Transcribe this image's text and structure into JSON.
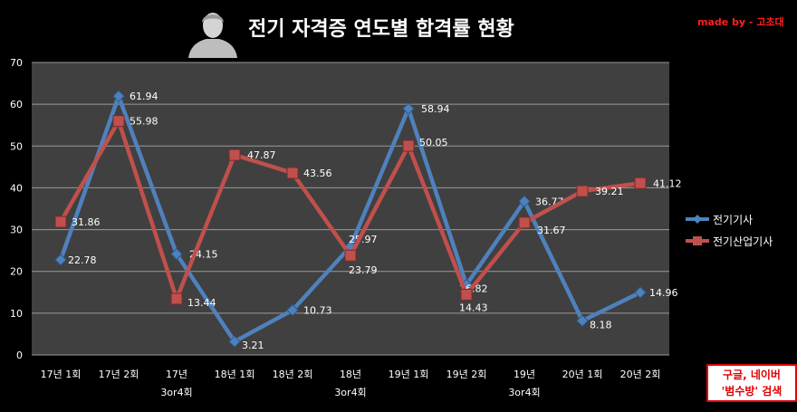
{
  "header": {
    "title": "전기 자격증 연도별 합격률 현황",
    "credit": "made by - 고초대",
    "avatar_icon": "person-silhouette-icon"
  },
  "notice": {
    "line1": "구글, 네이버",
    "line2": "'범수방' 검색"
  },
  "chart_data": {
    "type": "line",
    "categories": [
      "17년 1회",
      "17년 2회",
      "17년 3or4회",
      "18년 1회",
      "18년 2회",
      "18년 3or4회",
      "19년 1회",
      "19년 2회",
      "19년 3or4회",
      "20년 1회",
      "20년 2회"
    ],
    "category_lines": [
      [
        "17년 1회"
      ],
      [
        "17년 2회"
      ],
      [
        "17년",
        "3or4회"
      ],
      [
        "18년 1회"
      ],
      [
        "18년 2회"
      ],
      [
        "18년",
        "3or4회"
      ],
      [
        "19년 1회"
      ],
      [
        "19년 2회"
      ],
      [
        "19년",
        "3or4회"
      ],
      [
        "20년 1회"
      ],
      [
        "20년 2회"
      ]
    ],
    "series": [
      {
        "name": "전기기사",
        "color": "#4f81bd",
        "marker": "diamond",
        "values": [
          22.78,
          61.94,
          24.15,
          3.21,
          10.73,
          25.97,
          58.94,
          16.82,
          36.77,
          8.18,
          14.96
        ]
      },
      {
        "name": "전기산업기사",
        "color": "#c0504d",
        "marker": "square",
        "values": [
          31.86,
          55.98,
          13.44,
          47.87,
          43.56,
          23.79,
          50.05,
          14.43,
          31.67,
          39.21,
          41.12
        ]
      }
    ],
    "ylim": [
      0,
      70
    ],
    "yticks": [
      0,
      10,
      20,
      30,
      40,
      50,
      60,
      70
    ],
    "grid": true,
    "legend": "right",
    "plot_background": "#404040",
    "label_style": "one decimal-2 value per point"
  }
}
